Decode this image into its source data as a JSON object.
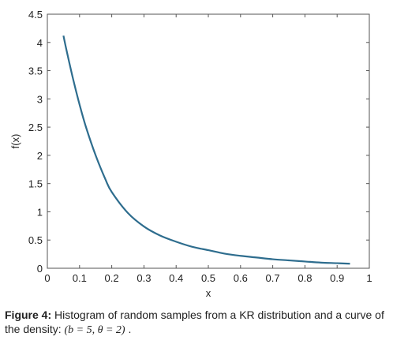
{
  "chart_data": {
    "type": "line",
    "title": "",
    "xlabel": "x",
    "ylabel": "f(x)",
    "xlim": [
      0,
      1
    ],
    "ylim": [
      0,
      4.5
    ],
    "x_ticks": [
      "0",
      "0.1",
      "0.2",
      "0.3",
      "0.4",
      "0.5",
      "0.6",
      "0.7",
      "0.8",
      "0.9",
      "1"
    ],
    "y_ticks": [
      "0",
      "0.5",
      "1",
      "1.5",
      "2",
      "2.5",
      "3",
      "3.5",
      "4",
      "4.5"
    ],
    "grid": false,
    "series": [
      {
        "color": "#2e6d8e",
        "x": [
          0.05,
          0.06,
          0.08,
          0.1,
          0.12,
          0.15,
          0.18,
          0.2,
          0.25,
          0.3,
          0.35,
          0.4,
          0.45,
          0.5,
          0.55,
          0.6,
          0.65,
          0.7,
          0.75,
          0.8,
          0.85,
          0.9,
          0.94
        ],
        "y": [
          4.12,
          3.85,
          3.35,
          2.9,
          2.5,
          2.0,
          1.58,
          1.35,
          0.98,
          0.74,
          0.58,
          0.47,
          0.38,
          0.32,
          0.26,
          0.22,
          0.19,
          0.16,
          0.14,
          0.12,
          0.1,
          0.09,
          0.08
        ]
      }
    ]
  },
  "caption": {
    "label": "Figure 4:",
    "text": " Histogram of random samples from a KR distribution and a curve of the density: ",
    "math": "(b = 5, θ = 2)",
    "end": " ."
  }
}
